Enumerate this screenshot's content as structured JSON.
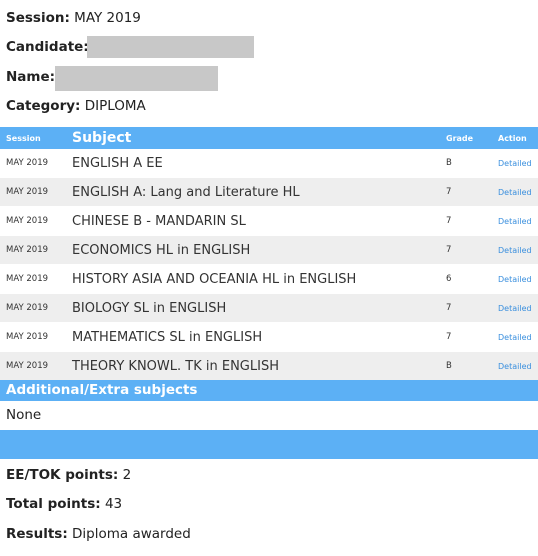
{
  "header": {
    "session_label": "Session:",
    "session_value": "MAY 2019",
    "candidate_label": "Candidate:",
    "name_label": "Name:",
    "category_label": "Category:",
    "category_value": "DIPLOMA"
  },
  "table": {
    "columns": {
      "session": "Session",
      "subject": "Subject",
      "grade": "Grade",
      "action": "Action"
    },
    "rows": [
      {
        "session": "MAY 2019",
        "subject": "ENGLISH A EE",
        "grade": "B",
        "action": "Detailed"
      },
      {
        "session": "MAY 2019",
        "subject": "ENGLISH A: Lang and Literature HL",
        "grade": "7",
        "action": "Detailed"
      },
      {
        "session": "MAY 2019",
        "subject": "CHINESE B - MANDARIN SL",
        "grade": "7",
        "action": "Detailed"
      },
      {
        "session": "MAY 2019",
        "subject": "ECONOMICS HL in ENGLISH",
        "grade": "7",
        "action": "Detailed"
      },
      {
        "session": "MAY 2019",
        "subject": "HISTORY ASIA AND OCEANIA HL in ENGLISH",
        "grade": "6",
        "action": "Detailed"
      },
      {
        "session": "MAY 2019",
        "subject": "BIOLOGY SL in ENGLISH",
        "grade": "7",
        "action": "Detailed"
      },
      {
        "session": "MAY 2019",
        "subject": "MATHEMATICS SL in ENGLISH",
        "grade": "7",
        "action": "Detailed"
      },
      {
        "session": "MAY 2019",
        "subject": "THEORY KNOWL. TK in ENGLISH",
        "grade": "B",
        "action": "Detailed"
      }
    ]
  },
  "extra": {
    "title": "Additional/Extra subjects",
    "value": "None"
  },
  "summary": {
    "eetok_label": "EE/TOK points:",
    "eetok_value": "2",
    "total_label": "Total points:",
    "total_value": "43",
    "results_label": "Results:",
    "results_value": "Diploma awarded"
  },
  "colors": {
    "header_blue": "#5cb0f5",
    "link_blue": "#3a8fde",
    "row_alt": "#eeeeee",
    "redaction_gray": "#c8c8c8"
  }
}
